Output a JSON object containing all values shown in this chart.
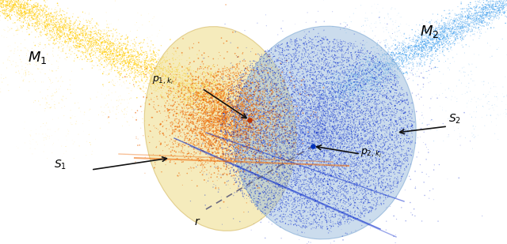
{
  "title": "",
  "background_color": "#ffffff",
  "M1_label": "$M_1$",
  "M2_label": "$M_2$",
  "S1_label": "$S_1$",
  "S2_label": "$S_2$",
  "p1_label": "$p_{1,k_i}$",
  "p2_label": "$p_{2,k_j}$",
  "r_label": "$r$",
  "M1_color": "#FFCC00",
  "M2_color": "#3399EE",
  "S1_color": "#EDD87A",
  "S2_color": "#99BBDD",
  "orange_color": "#EE6600",
  "blue_scan_color": "#0022CC",
  "p1_color": "#BB3300",
  "p2_color": "#0033BB",
  "arrow_color": "#111111",
  "dashed_color": "#555577",
  "figsize": [
    6.4,
    3.09
  ],
  "dpi": 100
}
